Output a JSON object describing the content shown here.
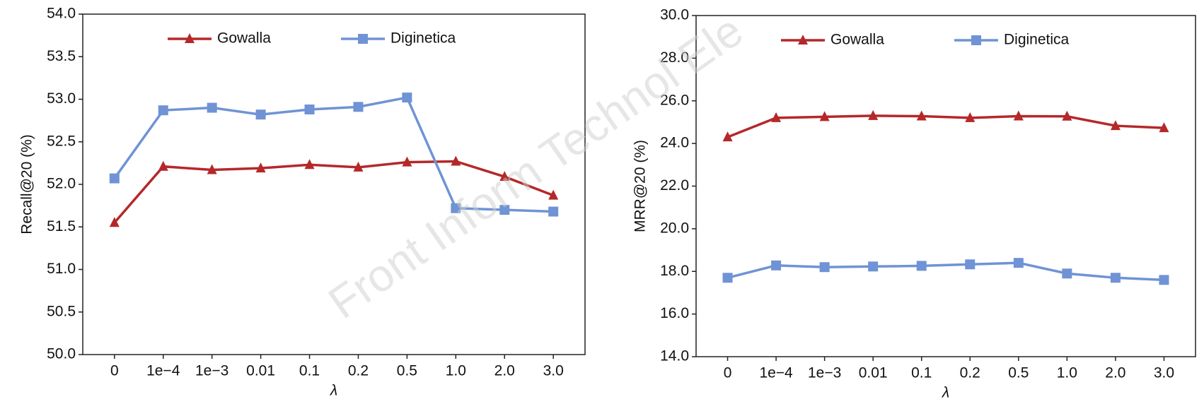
{
  "chart_data": [
    {
      "type": "line",
      "y_label": "Recall@20 (%)",
      "x_label": "λ",
      "categories": [
        "0",
        "1e−4",
        "1e−3",
        "0.01",
        "0.1",
        "0.2",
        "0.5",
        "1.0",
        "2.0",
        "3.0"
      ],
      "series": [
        {
          "name": "Gowalla",
          "color": "#b5282a",
          "marker": "triangle",
          "values": [
            51.55,
            52.21,
            52.17,
            52.19,
            52.23,
            52.2,
            52.26,
            52.27,
            52.09,
            51.87
          ]
        },
        {
          "name": "Diginetica",
          "color": "#6f93d4",
          "marker": "square",
          "values": [
            52.07,
            52.87,
            52.9,
            52.82,
            52.88,
            52.91,
            53.02,
            51.72,
            51.7,
            51.68
          ]
        }
      ],
      "ylim": [
        50,
        54
      ],
      "yticks": [
        {
          "value": 50,
          "label": "50.0"
        },
        50.5,
        {
          "value": 51,
          "label": "51.0"
        },
        51.5,
        {
          "value": 52,
          "label": "52.0"
        },
        52.5,
        {
          "value": 53,
          "label": "53.0"
        },
        53.5,
        {
          "value": 54,
          "label": "54.0"
        }
      ],
      "legend": "top"
    },
    {
      "type": "line",
      "y_label": "MRR@20 (%)",
      "x_label": "λ",
      "categories": [
        "0",
        "1e−4",
        "1e−3",
        "0.01",
        "0.1",
        "0.2",
        "0.5",
        "1.0",
        "2.0",
        "3.0"
      ],
      "series": [
        {
          "name": "Gowalla",
          "color": "#b5282a",
          "marker": "triangle",
          "values": [
            24.3,
            25.2,
            25.25,
            25.3,
            25.28,
            25.2,
            25.28,
            25.27,
            24.83,
            24.73
          ]
        },
        {
          "name": "Diginetica",
          "color": "#6f93d4",
          "marker": "square",
          "values": [
            17.7,
            18.28,
            18.2,
            18.23,
            18.26,
            18.33,
            18.4,
            17.9,
            17.7,
            17.6
          ]
        }
      ],
      "ylim": [
        14,
        30
      ],
      "yticks": [
        {
          "value": 14,
          "label": "14.0"
        },
        {
          "value": 16,
          "label": "16.0"
        },
        {
          "value": 18,
          "label": "18.0"
        },
        {
          "value": 20,
          "label": "20.0"
        },
        {
          "value": 22,
          "label": "22.0"
        },
        {
          "value": 24,
          "label": "24.0"
        },
        {
          "value": 26,
          "label": "26.0"
        },
        {
          "value": 28,
          "label": "28.0"
        },
        {
          "value": 30,
          "label": "30.0"
        }
      ],
      "legend": "top"
    }
  ],
  "watermark": "Front Inform Technol Ele"
}
